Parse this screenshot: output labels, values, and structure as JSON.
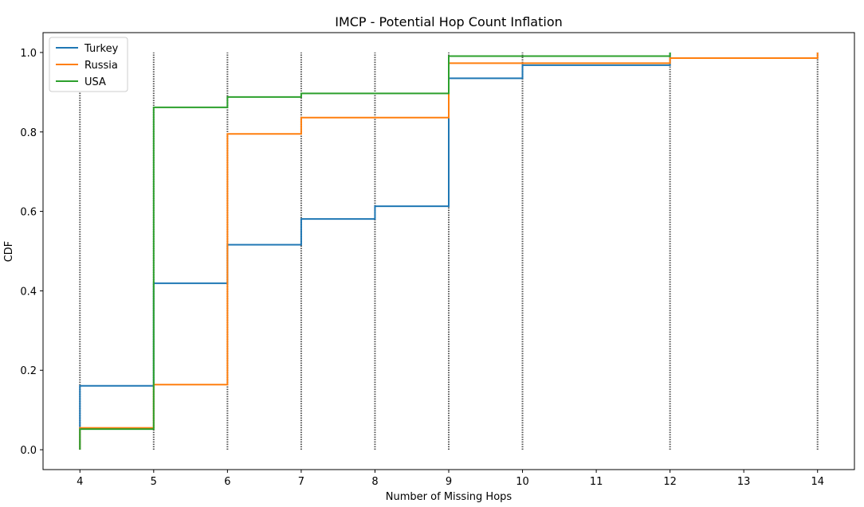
{
  "chart_data": {
    "type": "line",
    "step": true,
    "title": "IMCP - Potential Hop Count Inflation",
    "xlabel": "Number of Missing Hops",
    "ylabel": "CDF",
    "xlim": [
      3.5,
      14.5
    ],
    "ylim": [
      -0.05,
      1.05
    ],
    "xticks": [
      4,
      5,
      6,
      7,
      8,
      9,
      10,
      11,
      12,
      13,
      14
    ],
    "yticks": [
      0.0,
      0.2,
      0.4,
      0.6,
      0.8,
      1.0
    ],
    "ytick_labels": [
      "0.0",
      "0.2",
      "0.4",
      "0.6",
      "0.8",
      "1.0"
    ],
    "grid": false,
    "legend_position": "top-left",
    "series": [
      {
        "name": "Turkey",
        "color": "#1f77b4",
        "x": [
          4,
          5,
          6,
          7,
          8,
          9,
          10,
          12
        ],
        "y": [
          0.161,
          0.419,
          0.516,
          0.581,
          0.613,
          0.935,
          0.968,
          1.0
        ]
      },
      {
        "name": "Russia",
        "color": "#ff7f0e",
        "x": [
          4,
          5,
          6,
          7,
          9,
          12,
          14
        ],
        "y": [
          0.055,
          0.164,
          0.795,
          0.836,
          0.973,
          0.986,
          1.0
        ]
      },
      {
        "name": "USA",
        "color": "#2ca02c",
        "x": [
          4,
          5,
          6,
          7,
          9,
          12
        ],
        "y": [
          0.052,
          0.862,
          0.888,
          0.897,
          0.991,
          1.0
        ]
      }
    ],
    "dotted_verticals": [
      4,
      5,
      6,
      7,
      8,
      9,
      10,
      12,
      14
    ]
  }
}
